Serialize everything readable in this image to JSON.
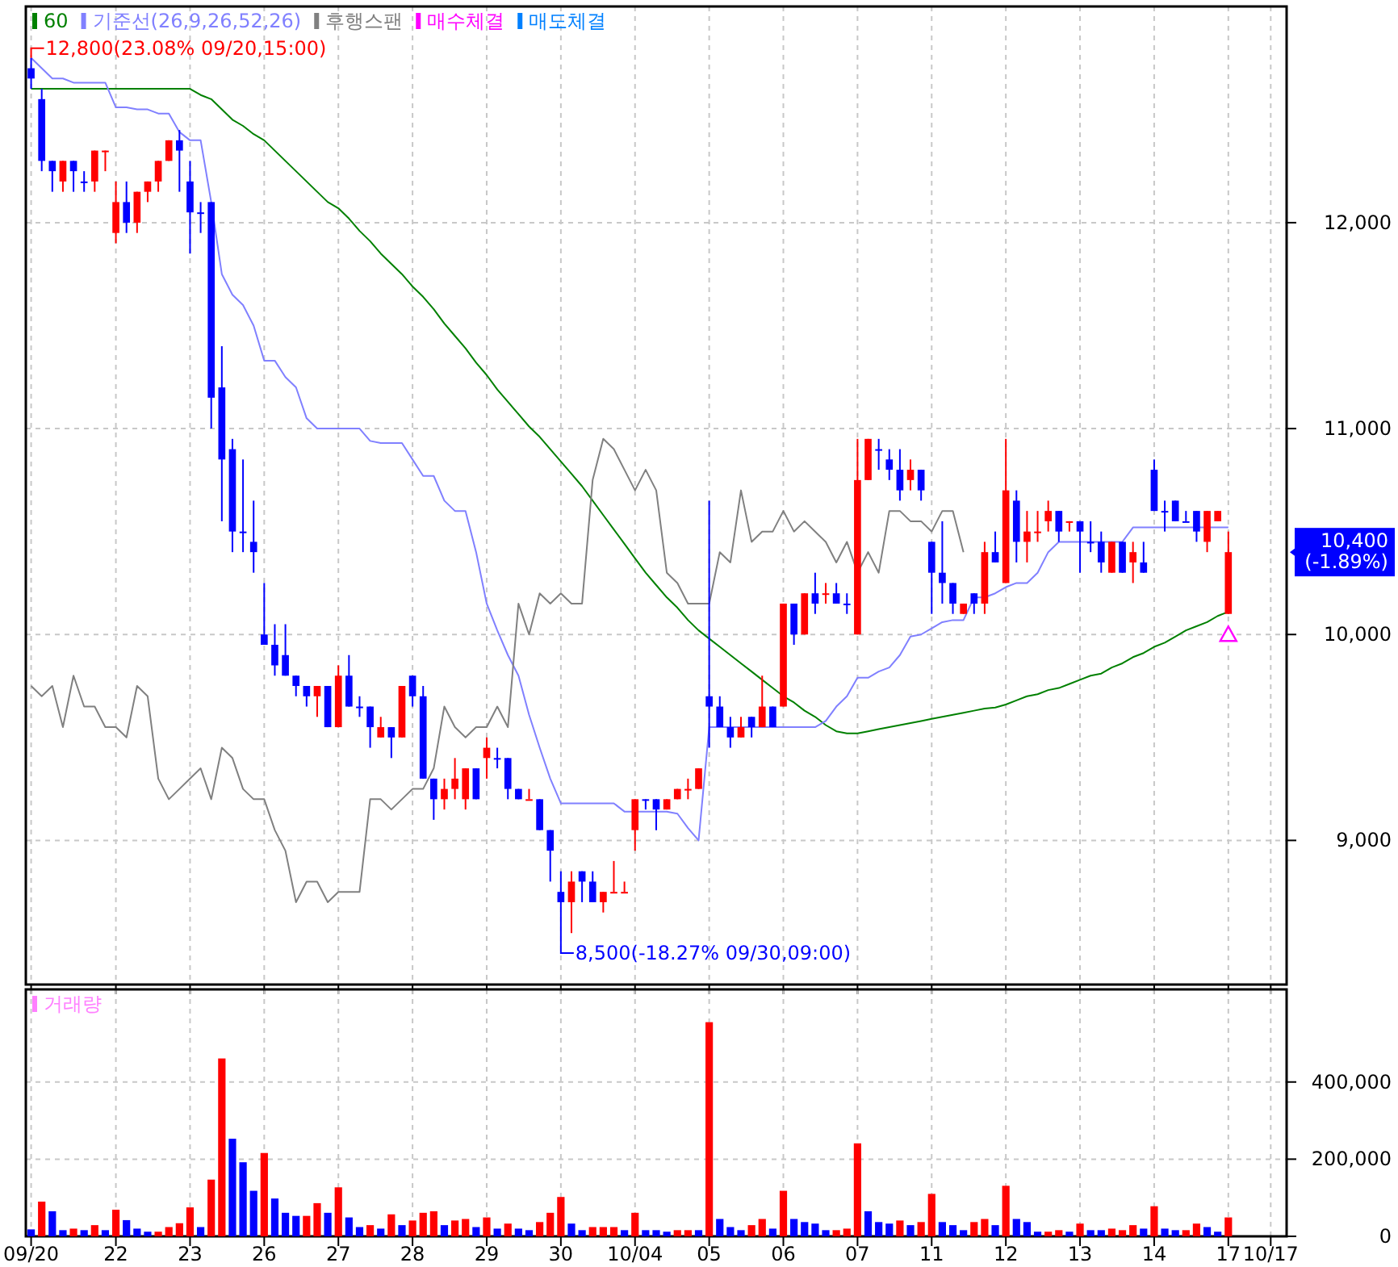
{
  "chart_data": [
    {
      "type": "candlestick",
      "legend": "top left",
      "grid": true,
      "tick_labels": "y",
      "categories": [
        "09/20",
        null,
        null,
        null,
        null,
        null,
        null,
        null,
        "22",
        null,
        null,
        null,
        null,
        null,
        null,
        "23",
        null,
        null,
        null,
        null,
        null,
        null,
        "26",
        null,
        null,
        null,
        null,
        null,
        null,
        "27",
        null,
        null,
        null,
        null,
        null,
        null,
        "28",
        null,
        null,
        null,
        null,
        null,
        null,
        "29",
        null,
        null,
        null,
        null,
        null,
        null,
        "30",
        null,
        null,
        null,
        null,
        null,
        null,
        "10/04",
        null,
        null,
        null,
        null,
        null,
        null,
        "05",
        null,
        null,
        null,
        null,
        null,
        null,
        "06",
        null,
        null,
        null,
        null,
        null,
        null,
        "07",
        null,
        null,
        null,
        null,
        null,
        null,
        "11",
        null,
        null,
        null,
        null,
        null,
        null,
        "12",
        null,
        null,
        null,
        null,
        null,
        null,
        "13",
        null,
        null,
        null,
        null,
        null,
        null,
        "14",
        null,
        null,
        null,
        null,
        null,
        null,
        "17",
        null,
        null,
        null,
        "10/17",
        null
      ],
      "ylim": [
        8300,
        13050
      ],
      "yticks": [
        {
          "value": 9000,
          "label": "9,000"
        },
        {
          "value": 10000,
          "label": "10,000"
        },
        {
          "value": 11000,
          "label": "11,000"
        },
        {
          "value": 12000,
          "label": "12,000"
        }
      ],
      "ohlc": [
        [
          12750,
          12800,
          12650,
          12700
        ],
        [
          12600,
          12650,
          12250,
          12300
        ],
        [
          12300,
          12300,
          12150,
          12250
        ],
        [
          12200,
          12300,
          12150,
          12300
        ],
        [
          12300,
          12300,
          12150,
          12250
        ],
        [
          12200,
          12250,
          12150,
          12200
        ],
        [
          12200,
          12350,
          12150,
          12350
        ],
        [
          12350,
          12350,
          12250,
          12350
        ],
        [
          11950,
          12200,
          11900,
          12100
        ],
        [
          12100,
          12200,
          11950,
          12000
        ],
        [
          12000,
          12150,
          11950,
          12150
        ],
        [
          12150,
          12200,
          12100,
          12200
        ],
        [
          12200,
          12300,
          12150,
          12300
        ],
        [
          12300,
          12400,
          12300,
          12400
        ],
        [
          12400,
          12450,
          12150,
          12350
        ],
        [
          12200,
          12300,
          11850,
          12050
        ],
        [
          12050,
          12100,
          11950,
          12050
        ],
        [
          12100,
          12100,
          11000,
          11150
        ],
        [
          11200,
          11400,
          10550,
          10850
        ],
        [
          10900,
          10950,
          10400,
          10500
        ],
        [
          10500,
          10850,
          10400,
          10500
        ],
        [
          10450,
          10650,
          10300,
          10400
        ],
        [
          10000,
          10250,
          9950,
          9950
        ],
        [
          9950,
          10050,
          9800,
          9850
        ],
        [
          9900,
          10050,
          9800,
          9800
        ],
        [
          9800,
          9800,
          9700,
          9750
        ],
        [
          9750,
          9750,
          9650,
          9700
        ],
        [
          9700,
          9750,
          9600,
          9750
        ],
        [
          9750,
          9750,
          9550,
          9550
        ],
        [
          9550,
          9850,
          9550,
          9800
        ],
        [
          9800,
          9900,
          9650,
          9650
        ],
        [
          9650,
          9700,
          9600,
          9650
        ],
        [
          9650,
          9650,
          9450,
          9550
        ],
        [
          9500,
          9600,
          9500,
          9550
        ],
        [
          9550,
          9550,
          9400,
          9500
        ],
        [
          9500,
          9750,
          9500,
          9750
        ],
        [
          9800,
          9800,
          9650,
          9700
        ],
        [
          9700,
          9750,
          9300,
          9300
        ],
        [
          9300,
          9300,
          9100,
          9200
        ],
        [
          9200,
          9300,
          9150,
          9250
        ],
        [
          9250,
          9400,
          9200,
          9300
        ],
        [
          9200,
          9350,
          9150,
          9350
        ],
        [
          9350,
          9350,
          9200,
          9200
        ],
        [
          9400,
          9500,
          9300,
          9450
        ],
        [
          9400,
          9450,
          9350,
          9400
        ],
        [
          9400,
          9400,
          9200,
          9250
        ],
        [
          9250,
          9250,
          9200,
          9200
        ],
        [
          9200,
          9250,
          9200,
          9200
        ],
        [
          9200,
          9200,
          9050,
          9050
        ],
        [
          9050,
          9050,
          8800,
          8950
        ],
        [
          8750,
          8850,
          8500,
          8700
        ],
        [
          8700,
          8850,
          8550,
          8800
        ],
        [
          8850,
          8850,
          8700,
          8800
        ],
        [
          8800,
          8850,
          8700,
          8700
        ],
        [
          8700,
          8750,
          8650,
          8750
        ],
        [
          8750,
          8900,
          8750,
          8750
        ],
        [
          8750,
          8800,
          8750,
          8750
        ],
        [
          9050,
          9200,
          8950,
          9200
        ],
        [
          9200,
          9200,
          9150,
          9200
        ],
        [
          9200,
          9200,
          9050,
          9150
        ],
        [
          9150,
          9200,
          9150,
          9200
        ],
        [
          9200,
          9250,
          9200,
          9250
        ],
        [
          9250,
          9300,
          9200,
          9250
        ],
        [
          9250,
          9350,
          9250,
          9350
        ],
        [
          9700,
          10650,
          9450,
          9650
        ],
        [
          9650,
          9700,
          9550,
          9550
        ],
        [
          9550,
          9600,
          9450,
          9500
        ],
        [
          9500,
          9600,
          9500,
          9550
        ],
        [
          9600,
          9600,
          9500,
          9550
        ],
        [
          9550,
          9800,
          9550,
          9650
        ],
        [
          9650,
          9650,
          9550,
          9550
        ],
        [
          9650,
          10150,
          9650,
          10150
        ],
        [
          10150,
          10150,
          9950,
          10000
        ],
        [
          10000,
          10200,
          10000,
          10200
        ],
        [
          10200,
          10300,
          10100,
          10150
        ],
        [
          10200,
          10250,
          10150,
          10200
        ],
        [
          10200,
          10250,
          10150,
          10150
        ],
        [
          10150,
          10200,
          10100,
          10150
        ],
        [
          10000,
          10950,
          10000,
          10750
        ],
        [
          10750,
          10950,
          10750,
          10950
        ],
        [
          10900,
          10950,
          10800,
          10900
        ],
        [
          10850,
          10900,
          10750,
          10800
        ],
        [
          10800,
          10900,
          10650,
          10700
        ],
        [
          10750,
          10850,
          10700,
          10800
        ],
        [
          10800,
          10800,
          10650,
          10700
        ],
        [
          10450,
          10450,
          10100,
          10300
        ],
        [
          10300,
          10550,
          10150,
          10250
        ],
        [
          10250,
          10250,
          10100,
          10150
        ],
        [
          10100,
          10150,
          10100,
          10150
        ],
        [
          10200,
          10200,
          10100,
          10150
        ],
        [
          10150,
          10450,
          10100,
          10400
        ],
        [
          10400,
          10500,
          10350,
          10350
        ],
        [
          10250,
          10950,
          10250,
          10700
        ],
        [
          10650,
          10700,
          10350,
          10450
        ],
        [
          10450,
          10600,
          10350,
          10500
        ],
        [
          10500,
          10600,
          10450,
          10500
        ],
        [
          10550,
          10650,
          10500,
          10600
        ],
        [
          10600,
          10600,
          10450,
          10500
        ],
        [
          10550,
          10550,
          10500,
          10550
        ],
        [
          10550,
          10550,
          10300,
          10500
        ],
        [
          10450,
          10550,
          10400,
          10450
        ],
        [
          10450,
          10500,
          10300,
          10350
        ],
        [
          10300,
          10450,
          10300,
          10450
        ],
        [
          10450,
          10450,
          10300,
          10300
        ],
        [
          10350,
          10450,
          10250,
          10400
        ],
        [
          10350,
          10450,
          10300,
          10300
        ],
        [
          10800,
          10850,
          10600,
          10600
        ],
        [
          10600,
          10650,
          10500,
          10600
        ],
        [
          10650,
          10650,
          10550,
          10550
        ],
        [
          10550,
          10600,
          10550,
          10550
        ],
        [
          10600,
          10600,
          10450,
          10500
        ],
        [
          10450,
          10600,
          10400,
          10600
        ],
        [
          10550,
          10600,
          10550,
          10600
        ],
        [
          10100,
          10500,
          10100,
          10400
        ],
        null,
        null,
        null,
        null,
        null
      ],
      "colors": [
        "#0000ff",
        "#0000ff",
        "#0000ff",
        "#ff0000",
        "#0000ff",
        "#0000ff",
        "#ff0000",
        "#ff0000",
        "#ff0000",
        "#0000ff",
        "#ff0000",
        "#ff0000",
        "#ff0000",
        "#ff0000",
        "#0000ff",
        "#0000ff",
        "#0000ff",
        "#0000ff",
        "#0000ff",
        "#0000ff",
        "#0000ff",
        "#0000ff",
        "#0000ff",
        "#0000ff",
        "#0000ff",
        "#0000ff",
        "#0000ff",
        "#ff0000",
        "#0000ff",
        "#ff0000",
        "#0000ff",
        "#0000ff",
        "#0000ff",
        "#ff0000",
        "#0000ff",
        "#ff0000",
        "#0000ff",
        "#0000ff",
        "#0000ff",
        "#ff0000",
        "#ff0000",
        "#ff0000",
        "#0000ff",
        "#ff0000",
        "#0000ff",
        "#0000ff",
        "#0000ff",
        "#ff0000",
        "#0000ff",
        "#0000ff",
        "#0000ff",
        "#ff0000",
        "#0000ff",
        "#0000ff",
        "#ff0000",
        "#ff0000",
        "#ff0000",
        "#ff0000",
        "#0000ff",
        "#0000ff",
        "#ff0000",
        "#ff0000",
        "#ff0000",
        "#ff0000",
        "#0000ff",
        "#0000ff",
        "#0000ff",
        "#ff0000",
        "#0000ff",
        "#ff0000",
        "#0000ff",
        "#ff0000",
        "#0000ff",
        "#ff0000",
        "#0000ff",
        "#ff0000",
        "#0000ff",
        "#0000ff",
        "#ff0000",
        "#ff0000",
        "#0000ff",
        "#0000ff",
        "#0000ff",
        "#ff0000",
        "#0000ff",
        "#0000ff",
        "#0000ff",
        "#0000ff",
        "#ff0000",
        "#0000ff",
        "#ff0000",
        "#0000ff",
        "#ff0000",
        "#0000ff",
        "#ff0000",
        "#ff0000",
        "#ff0000",
        "#0000ff",
        "#ff0000",
        "#0000ff",
        "#0000ff",
        "#0000ff",
        "#ff0000",
        "#0000ff",
        "#ff0000",
        "#0000ff",
        "#0000ff",
        "#0000ff",
        "#0000ff",
        "#0000ff",
        "#0000ff",
        "#ff0000",
        "#ff0000",
        "#ff0000",
        null,
        null,
        null,
        null,
        null
      ],
      "series": [
        {
          "name": "60",
          "type": "line",
          "color": "#008000",
          "values": [
            12650,
            12650,
            12650,
            12650,
            12650,
            12650,
            12650,
            12650,
            12650,
            12650,
            12650,
            12650,
            12650,
            12650,
            12650,
            12650,
            12620,
            12600,
            12550,
            12500,
            12470,
            12430,
            12400,
            12350,
            12300,
            12250,
            12200,
            12150,
            12100,
            12070,
            12020,
            11960,
            11910,
            11850,
            11800,
            11750,
            11690,
            11640,
            11580,
            11510,
            11450,
            11390,
            11320,
            11260,
            11190,
            11130,
            11070,
            11010,
            10960,
            10900,
            10840,
            10780,
            10720,
            10650,
            10580,
            10510,
            10440,
            10370,
            10300,
            10240,
            10180,
            10130,
            10070,
            10020,
            9980,
            9940,
            9900,
            9860,
            9820,
            9780,
            9740,
            9700,
            9670,
            9630,
            9600,
            9560,
            9530,
            9520,
            9520,
            9530,
            9540,
            9550,
            9560,
            9570,
            9580,
            9590,
            9600,
            9610,
            9620,
            9630,
            9640,
            9645,
            9660,
            9680,
            9700,
            9710,
            9730,
            9740,
            9760,
            9780,
            9800,
            9810,
            9840,
            9860,
            9890,
            9910,
            9940,
            9960,
            9990,
            10020,
            10040,
            10060,
            10090,
            10110,
            null,
            null,
            null,
            null,
            null
          ]
        },
        {
          "name": "기준선(26,9,26,52,26)",
          "type": "line",
          "color": "#8080ff",
          "values": [
            12800,
            12750,
            12700,
            12700,
            12680,
            12680,
            12680,
            12680,
            12560,
            12560,
            12550,
            12550,
            12530,
            12530,
            12440,
            12400,
            12400,
            12100,
            11750,
            11650,
            11600,
            11500,
            11330,
            11330,
            11250,
            11200,
            11050,
            11000,
            11000,
            11000,
            11000,
            11000,
            10940,
            10930,
            10930,
            10930,
            10850,
            10770,
            10770,
            10650,
            10600,
            10600,
            10400,
            10150,
            10020,
            9900,
            9800,
            9610,
            9450,
            9300,
            9180,
            9180,
            9180,
            9180,
            9180,
            9180,
            9140,
            9140,
            9140,
            9140,
            9140,
            9130,
            9060,
            9000,
            9550,
            9550,
            9550,
            9550,
            9550,
            9550,
            9550,
            9550,
            9550,
            9550,
            9550,
            9580,
            9650,
            9700,
            9790,
            9790,
            9820,
            9840,
            9900,
            9990,
            10000,
            10030,
            10060,
            10070,
            10070,
            10180,
            10180,
            10200,
            10230,
            10250,
            10250,
            10300,
            10400,
            10450,
            10450,
            10450,
            10450,
            10450,
            10450,
            10450,
            10520,
            10520,
            10520,
            10520,
            10520,
            10520,
            10520,
            10520,
            10520,
            10520,
            null,
            null,
            null,
            null,
            null
          ]
        },
        {
          "name": "후행스팬",
          "type": "line",
          "color": "#808080",
          "values": [
            9750,
            9700,
            9750,
            9550,
            9800,
            9650,
            9650,
            9550,
            9550,
            9500,
            9750,
            9700,
            9300,
            9200,
            9250,
            9300,
            9350,
            9200,
            9450,
            9400,
            9250,
            9200,
            9200,
            9050,
            8950,
            8700,
            8800,
            8800,
            8700,
            8750,
            8750,
            8750,
            9200,
            9200,
            9150,
            9200,
            9250,
            9250,
            9350,
            9650,
            9550,
            9500,
            9550,
            9550,
            9650,
            9550,
            10150,
            10000,
            10200,
            10150,
            10200,
            10150,
            10150,
            10750,
            10950,
            10900,
            10800,
            10700,
            10800,
            10700,
            10300,
            10250,
            10150,
            10150,
            10150,
            10400,
            10350,
            10700,
            10450,
            10500,
            10500,
            10600,
            10500,
            10550,
            10500,
            10450,
            10350,
            10450,
            10300,
            10400,
            10300,
            10600,
            10600,
            10550,
            10550,
            10500,
            10600,
            10600,
            10400,
            null,
            null,
            null,
            null,
            null,
            null,
            null,
            null,
            null,
            null,
            null,
            null,
            null,
            null,
            null,
            null,
            null,
            null,
            null,
            null,
            null,
            null,
            null,
            null,
            null,
            null,
            null,
            null,
            null,
            null
          ]
        },
        {
          "name": "매수체결",
          "type": "scatter",
          "marker": "triangle",
          "color": "#ff00ff",
          "values": [
            null,
            null,
            null,
            null,
            null,
            null,
            null,
            null,
            null,
            null,
            null,
            null,
            null,
            null,
            null,
            null,
            null,
            null,
            null,
            null,
            null,
            null,
            null,
            null,
            null,
            null,
            null,
            null,
            null,
            null,
            null,
            null,
            null,
            null,
            null,
            null,
            null,
            null,
            null,
            null,
            null,
            null,
            null,
            null,
            null,
            null,
            null,
            null,
            null,
            null,
            null,
            null,
            null,
            null,
            null,
            null,
            null,
            null,
            null,
            null,
            null,
            null,
            null,
            null,
            null,
            null,
            null,
            null,
            null,
            null,
            null,
            null,
            null,
            null,
            null,
            null,
            null,
            null,
            null,
            null,
            null,
            null,
            null,
            null,
            null,
            null,
            null,
            null,
            null,
            null,
            null,
            null,
            null,
            null,
            null,
            null,
            null,
            null,
            null,
            null,
            null,
            null,
            null,
            null,
            null,
            null,
            null,
            null,
            null,
            null,
            null,
            null,
            null,
            10000,
            null,
            null,
            null,
            null,
            null
          ]
        },
        {
          "name": "매도체결",
          "type": "scatter",
          "color": "#0080ff",
          "values": [
            null,
            null,
            null,
            null,
            null,
            null,
            null,
            null,
            null,
            null,
            null,
            null,
            null,
            null,
            null,
            null,
            null,
            null,
            null,
            null,
            null,
            null,
            null,
            null,
            null,
            null,
            null,
            null,
            null,
            null,
            null,
            null,
            null,
            null,
            null,
            null,
            null,
            null,
            null,
            null,
            null,
            null,
            null,
            null,
            null,
            null,
            null,
            null,
            null,
            null,
            null,
            null,
            null,
            null,
            null,
            null,
            null,
            null,
            null,
            null,
            null,
            null,
            null,
            null,
            null,
            null,
            null,
            null,
            null,
            null,
            null,
            null,
            null,
            null,
            null,
            null,
            null,
            null,
            null,
            null,
            null,
            null,
            null,
            null,
            null,
            null,
            null,
            null,
            null,
            null,
            null,
            null,
            null,
            null,
            null,
            null,
            null,
            null,
            null,
            null,
            null,
            null,
            null,
            null,
            null,
            null,
            null,
            null,
            null,
            null,
            null,
            null,
            null,
            null,
            null,
            null,
            null,
            null,
            null
          ]
        }
      ],
      "annotations": [
        {
          "text": "12,800(23.08% 09/20,15:00)",
          "x": "09/20",
          "y": 12800
        },
        {
          "text": "8,500(-18.27% 09/30,09:00)",
          "x": "30",
          "y": 8500
        },
        "10,400\n(-1.89%)"
      ]
    },
    {
      "type": "bar",
      "legend": "top left",
      "grid": true,
      "categories": [
        "09/20",
        null,
        null,
        null,
        null,
        null,
        null,
        null,
        "22",
        null,
        null,
        null,
        null,
        null,
        null,
        "23",
        null,
        null,
        null,
        null,
        null,
        null,
        "26",
        null,
        null,
        null,
        null,
        null,
        null,
        "27",
        null,
        null,
        null,
        null,
        null,
        null,
        "28",
        null,
        null,
        null,
        null,
        null,
        null,
        "29",
        null,
        null,
        null,
        null,
        null,
        null,
        "30",
        null,
        null,
        null,
        null,
        null,
        null,
        "10/04",
        null,
        null,
        null,
        null,
        null,
        null,
        "05",
        null,
        null,
        null,
        null,
        null,
        null,
        "06",
        null,
        null,
        null,
        null,
        null,
        null,
        "07",
        null,
        null,
        null,
        null,
        null,
        null,
        "11",
        null,
        null,
        null,
        null,
        null,
        null,
        "12",
        null,
        null,
        null,
        null,
        null,
        null,
        "13",
        null,
        null,
        null,
        null,
        null,
        null,
        "14",
        null,
        null,
        null,
        null,
        null,
        null,
        "17",
        null,
        null,
        null,
        "10/17",
        null
      ],
      "ylim": [
        0,
        640000
      ],
      "yticks": [
        0,
        {
          "value": 200000,
          "label": "200,000"
        },
        {
          "value": 400000,
          "label": "400,000"
        }
      ],
      "series": [
        {
          "name": "거래량",
          "color": "#ff80ff",
          "values": [
            18000,
            90000,
            65000,
            16000,
            20000,
            16000,
            29000,
            16000,
            69000,
            42000,
            20000,
            12000,
            12000,
            24000,
            34000,
            75000,
            24000,
            147000,
            461000,
            253000,
            192000,
            118000,
            216000,
            98000,
            61000,
            53000,
            53000,
            86000,
            61000,
            127000,
            49000,
            24000,
            29000,
            20000,
            57000,
            29000,
            41000,
            61000,
            65000,
            29000,
            41000,
            45000,
            24000,
            49000,
            20000,
            33000,
            20000,
            16000,
            37000,
            61000,
            102000,
            33000,
            16000,
            24000,
            24000,
            24000,
            16000,
            61000,
            16000,
            16000,
            12000,
            16000,
            16000,
            16000,
            555000,
            45000,
            24000,
            16000,
            29000,
            45000,
            20000,
            118000,
            45000,
            37000,
            33000,
            16000,
            16000,
            20000,
            241000,
            65000,
            37000,
            33000,
            41000,
            29000,
            37000,
            110000,
            37000,
            29000,
            16000,
            37000,
            45000,
            29000,
            131000,
            45000,
            37000,
            12000,
            12000,
            16000,
            12000,
            33000,
            16000,
            16000,
            20000,
            16000,
            29000,
            20000,
            78000,
            20000,
            16000,
            16000,
            33000,
            24000,
            12000,
            49000,
            null,
            null,
            null,
            null,
            null
          ],
          "colors": [
            "#0000ff",
            "#ff0000",
            "#0000ff",
            "#0000ff",
            "#ff0000",
            "#0000ff",
            "#ff0000",
            "#0000ff",
            "#ff0000",
            "#0000ff",
            "#0000ff",
            "#0000ff",
            "#ff0000",
            "#ff0000",
            "#ff0000",
            "#ff0000",
            "#0000ff",
            "#ff0000",
            "#ff0000",
            "#0000ff",
            "#0000ff",
            "#0000ff",
            "#ff0000",
            "#0000ff",
            "#0000ff",
            "#0000ff",
            "#ff0000",
            "#ff0000",
            "#0000ff",
            "#ff0000",
            "#0000ff",
            "#0000ff",
            "#ff0000",
            "#0000ff",
            "#ff0000",
            "#0000ff",
            "#ff0000",
            "#ff0000",
            "#ff0000",
            "#0000ff",
            "#ff0000",
            "#ff0000",
            "#0000ff",
            "#ff0000",
            "#0000ff",
            "#ff0000",
            "#0000ff",
            "#0000ff",
            "#ff0000",
            "#ff0000",
            "#ff0000",
            "#0000ff",
            "#0000ff",
            "#ff0000",
            "#ff0000",
            "#ff0000",
            "#0000ff",
            "#ff0000",
            "#0000ff",
            "#0000ff",
            "#0000ff",
            "#ff0000",
            "#ff0000",
            "#0000ff",
            "#ff0000",
            "#0000ff",
            "#0000ff",
            "#0000ff",
            "#ff0000",
            "#ff0000",
            "#0000ff",
            "#ff0000",
            "#0000ff",
            "#0000ff",
            "#0000ff",
            "#0000ff",
            "#ff0000",
            "#ff0000",
            "#ff0000",
            "#0000ff",
            "#0000ff",
            "#0000ff",
            "#ff0000",
            "#0000ff",
            "#ff0000",
            "#ff0000",
            "#0000ff",
            "#0000ff",
            "#0000ff",
            "#ff0000",
            "#ff0000",
            "#0000ff",
            "#ff0000",
            "#0000ff",
            "#0000ff",
            "#0000ff",
            "#ff0000",
            "#ff0000",
            "#0000ff",
            "#ff0000",
            "#0000ff",
            "#0000ff",
            "#ff0000",
            "#ff0000",
            "#ff0000",
            "#0000ff",
            "#ff0000",
            "#0000ff",
            "#0000ff",
            "#ff0000",
            "#ff0000",
            "#0000ff",
            "#0000ff",
            "#ff0000",
            null,
            null,
            null,
            null,
            null
          ]
        }
      ]
    }
  ]
}
